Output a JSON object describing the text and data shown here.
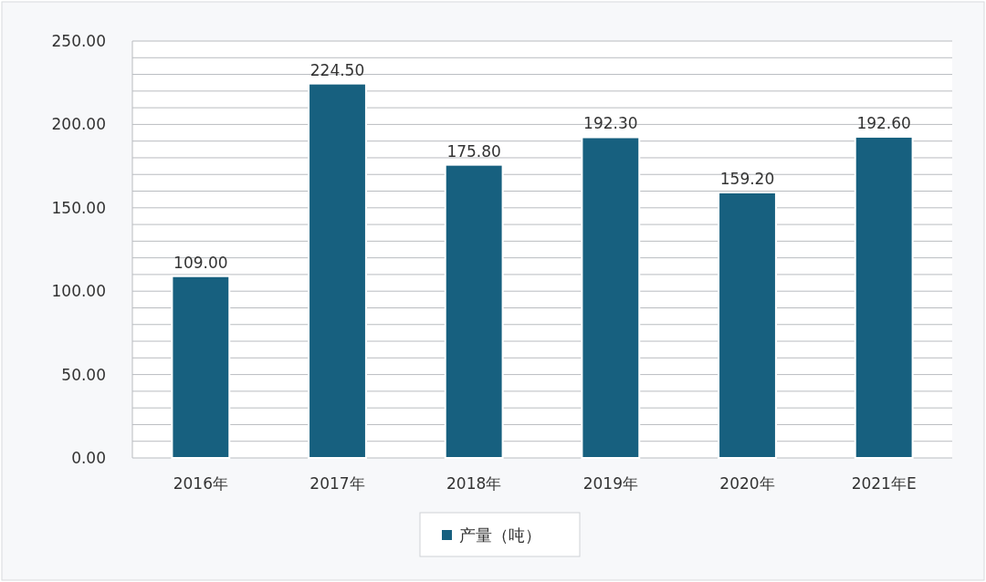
{
  "chart_data": {
    "type": "bar",
    "categories": [
      "2016年",
      "2017年",
      "2018年",
      "2019年",
      "2020年",
      "2021年E"
    ],
    "series": [
      {
        "name": "产量（吨）",
        "color": "#17607f",
        "values": [
          109.0,
          224.5,
          175.8,
          192.3,
          159.2,
          192.6
        ],
        "value_labels": [
          "109.00",
          "224.50",
          "175.80",
          "192.30",
          "159.20",
          "192.60"
        ]
      }
    ],
    "ylim": [
      0,
      250
    ],
    "yticks": [
      {
        "value": 0,
        "label": "0.00"
      },
      {
        "value": 10,
        "label": null
      },
      {
        "value": 20,
        "label": null
      },
      {
        "value": 30,
        "label": null
      },
      {
        "value": 40,
        "label": null
      },
      {
        "value": 50,
        "label": "50.00"
      },
      {
        "value": 60,
        "label": null
      },
      {
        "value": 70,
        "label": null
      },
      {
        "value": 80,
        "label": null
      },
      {
        "value": 90,
        "label": null
      },
      {
        "value": 100,
        "label": "100.00"
      },
      {
        "value": 110,
        "label": null
      },
      {
        "value": 120,
        "label": null
      },
      {
        "value": 130,
        "label": null
      },
      {
        "value": 140,
        "label": null
      },
      {
        "value": 150,
        "label": "150.00"
      },
      {
        "value": 160,
        "label": null
      },
      {
        "value": 170,
        "label": null
      },
      {
        "value": 180,
        "label": null
      },
      {
        "value": 190,
        "label": null
      },
      {
        "value": 200,
        "label": "200.00"
      },
      {
        "value": 210,
        "label": null
      },
      {
        "value": 220,
        "label": null
      },
      {
        "value": 230,
        "label": null
      },
      {
        "value": 240,
        "label": null
      },
      {
        "value": 250,
        "label": "250.00"
      }
    ],
    "grid": "y",
    "legend": "bottom"
  }
}
